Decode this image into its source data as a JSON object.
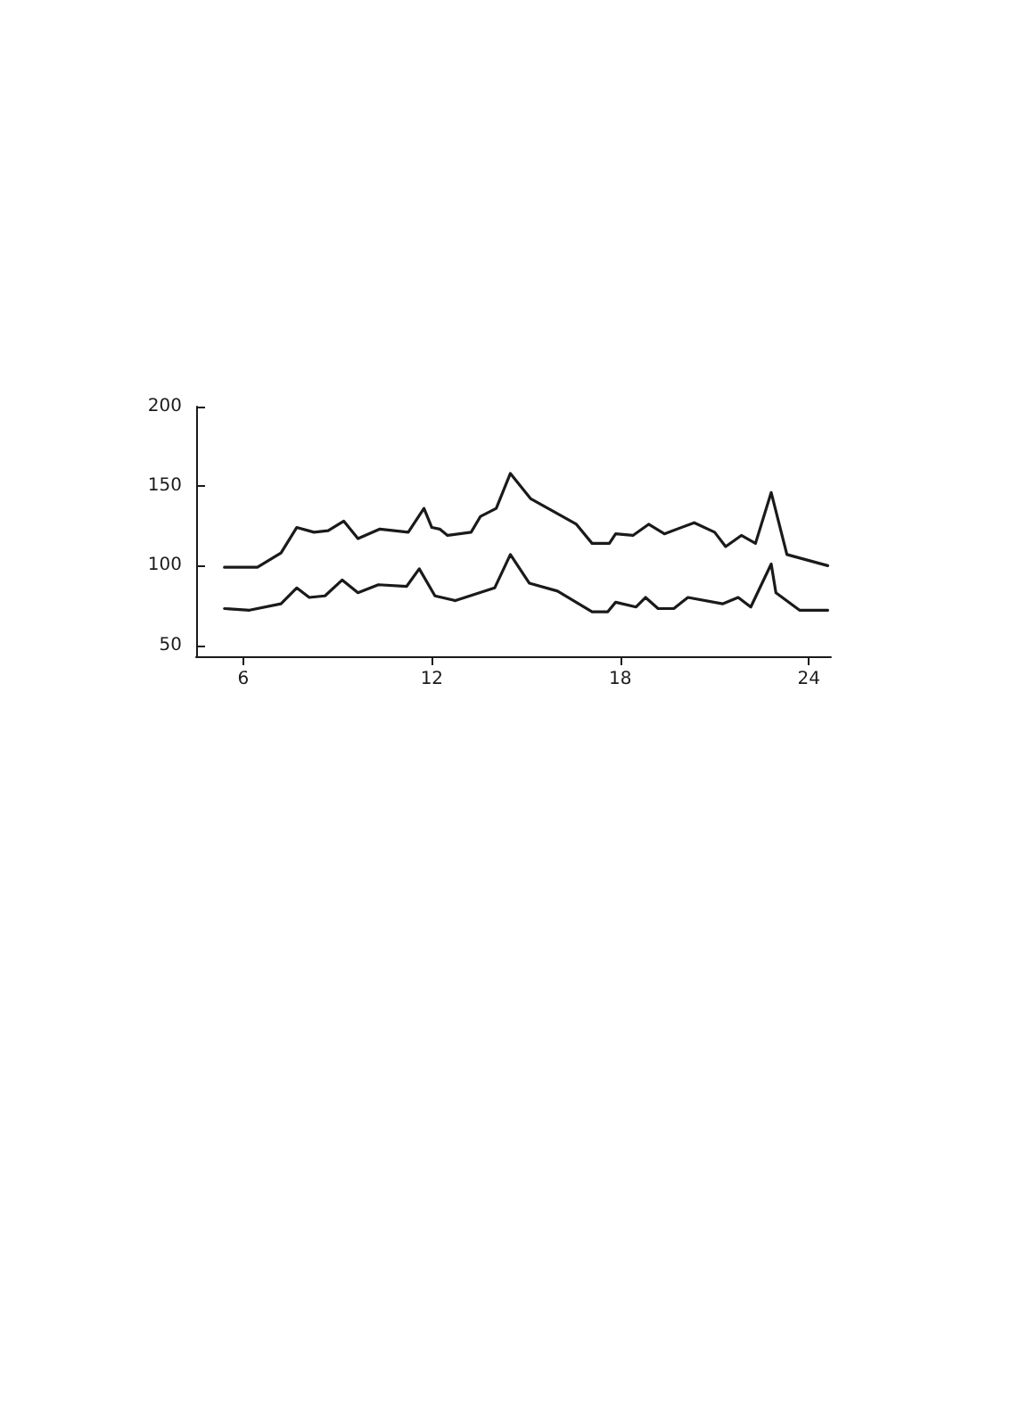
{
  "chart_data": {
    "type": "line",
    "xlim": [
      4.5,
      24.7
    ],
    "xticks": [
      6,
      12,
      18,
      24
    ],
    "ylim": [
      43,
      200
    ],
    "yticks": [
      50,
      100,
      150,
      200
    ],
    "grid": false,
    "marker": "none",
    "line_style": "solid",
    "series": [
      {
        "color": "#1a1a1a",
        "x": [
          5.4,
          6.45,
          7.2,
          7.7,
          8.25,
          8.7,
          9.2,
          9.65,
          10.35,
          11.25,
          11.75,
          12.0,
          12.25,
          12.5,
          13.25,
          13.55,
          14.05,
          14.5,
          15.15,
          16.6,
          17.1,
          17.65,
          17.85,
          18.4,
          18.9,
          19.4,
          20.35,
          21.0,
          21.35,
          21.85,
          22.3,
          22.8,
          23.3,
          24.6
        ],
        "values": [
          99,
          99,
          108,
          124,
          121,
          122,
          128,
          117,
          123,
          121,
          136,
          124,
          123,
          119,
          121,
          131,
          136,
          158,
          142,
          126,
          114,
          114,
          120,
          119,
          126,
          120,
          127,
          121,
          112,
          119,
          114,
          146,
          107,
          100
        ]
      },
      {
        "color": "#1a1a1a",
        "x": [
          5.4,
          6.2,
          7.2,
          7.7,
          8.1,
          8.6,
          9.15,
          9.65,
          10.3,
          11.2,
          11.6,
          12.1,
          12.75,
          14.0,
          14.5,
          15.1,
          16.0,
          17.1,
          17.6,
          17.85,
          18.5,
          18.8,
          19.2,
          19.7,
          20.15,
          21.25,
          21.75,
          22.15,
          22.8,
          22.95,
          23.7,
          24.6
        ],
        "values": [
          73,
          72,
          76,
          86,
          80,
          81,
          91,
          83,
          88,
          87,
          98,
          81,
          78,
          86,
          107,
          89,
          84,
          71,
          71,
          77,
          74,
          80,
          73,
          73,
          80,
          76,
          80,
          74,
          101,
          83,
          72,
          72
        ]
      }
    ]
  }
}
